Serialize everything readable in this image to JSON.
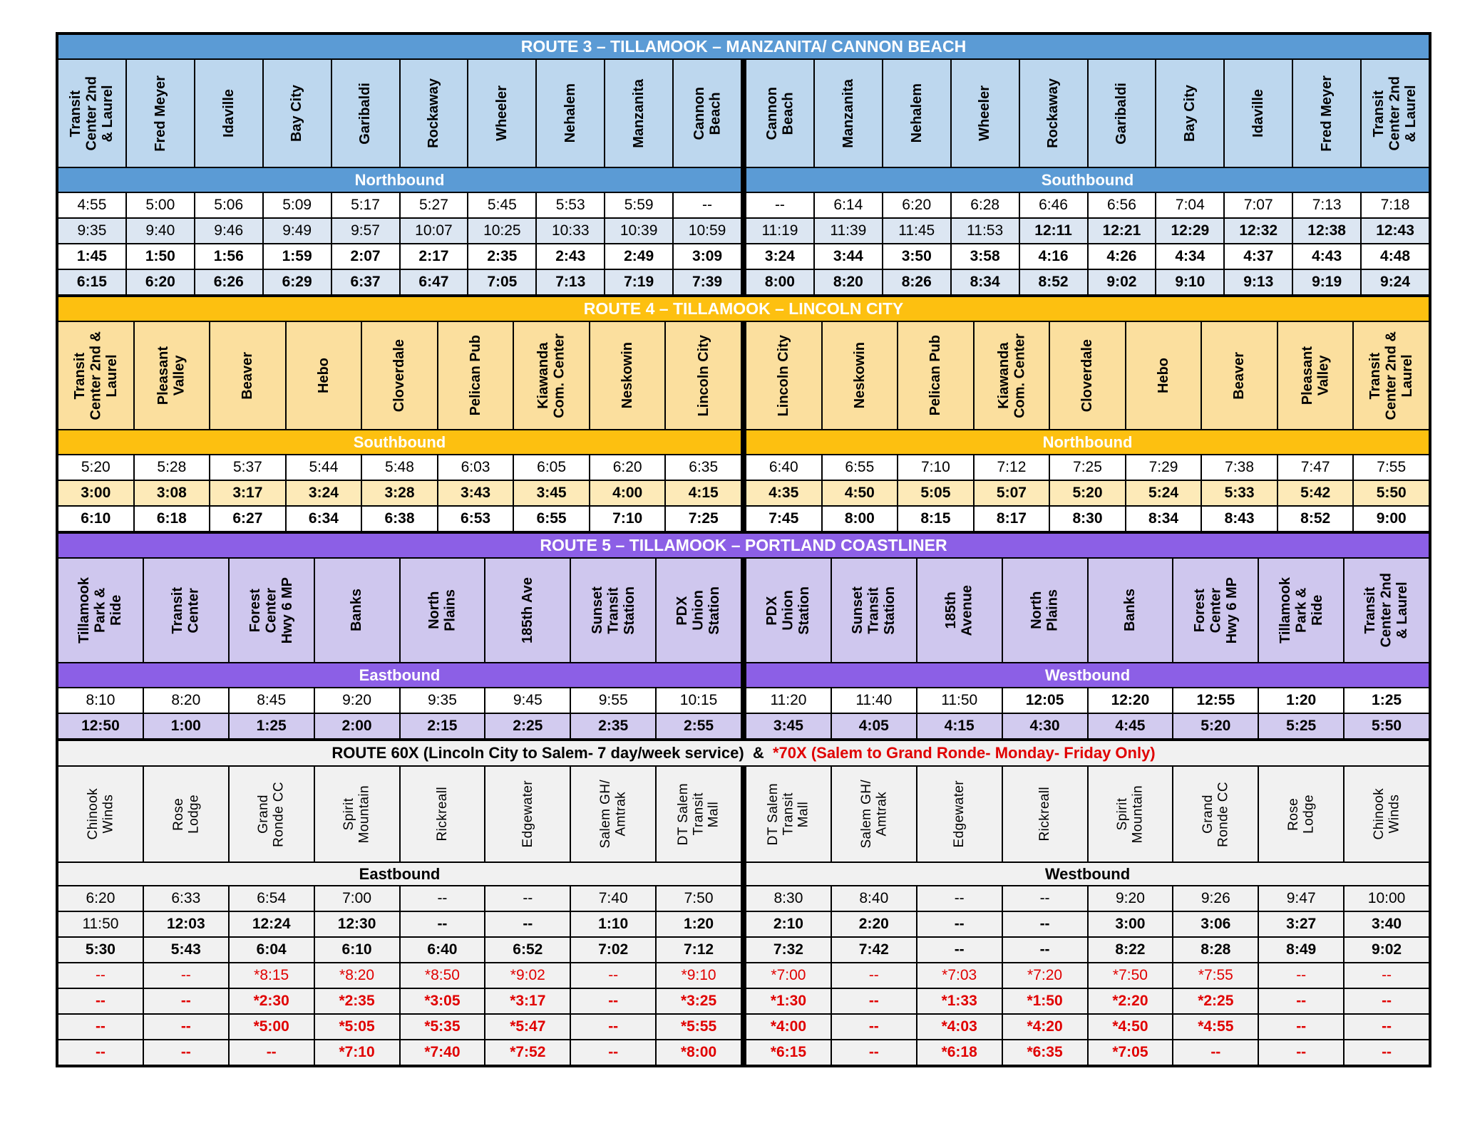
{
  "page": {
    "background": "#ffffff",
    "grid_color": "#000000"
  },
  "routes": [
    {
      "id": "route-3",
      "css": "route-r3",
      "title": "ROUTE 3 – TILLAMOOK – MANZANITA/ CANNON BEACH",
      "theme": {
        "title_bg": "#5b9bd5",
        "title_color": "#ffffff",
        "station_bg": "#bdd7ee",
        "dir_bg": "#5b9bd5",
        "dir_color": "#ffffff"
      },
      "directions": [
        "Northbound",
        "Southbound"
      ],
      "stations_left": [
        "Transit\nCenter 2nd\n& Laurel",
        "Fred Meyer",
        "Idaville",
        "Bay City",
        "Garibaldi",
        "Rockaway",
        "Wheeler",
        "Nehalem",
        "Manzanita",
        "Cannon\nBeach"
      ],
      "stations_right": [
        "Cannon\nBeach",
        "Manzanita",
        "Nehalem",
        "Wheeler",
        "Rockaway",
        "Garibaldi",
        "Bay City",
        "Idaville",
        "Fred Meyer",
        "Transit\nCenter 2nd\n& Laurel"
      ],
      "rows": [
        {
          "bg": "#ffffff",
          "bold": false,
          "cells": [
            "4:55",
            "5:00",
            "5:06",
            "5:09",
            "5:17",
            "5:27",
            "5:45",
            "5:53",
            "5:59",
            "--",
            "--",
            "6:14",
            "6:20",
            "6:28",
            "6:46",
            "6:56",
            "7:04",
            "7:07",
            "7:13",
            "7:18"
          ]
        },
        {
          "bg": "#dce6f2",
          "bold": [
            0,
            0,
            0,
            0,
            0,
            0,
            0,
            0,
            0,
            0,
            0,
            0,
            0,
            0,
            1,
            1,
            1,
            1,
            1,
            1
          ],
          "cells": [
            "9:35",
            "9:40",
            "9:46",
            "9:49",
            "9:57",
            "10:07",
            "10:25",
            "10:33",
            "10:39",
            "10:59",
            "11:19",
            "11:39",
            "11:45",
            "11:53",
            "12:11",
            "12:21",
            "12:29",
            "12:32",
            "12:38",
            "12:43"
          ]
        },
        {
          "bg": "#ffffff",
          "bold": true,
          "cells": [
            "1:45",
            "1:50",
            "1:56",
            "1:59",
            "2:07",
            "2:17",
            "2:35",
            "2:43",
            "2:49",
            "3:09",
            "3:24",
            "3:44",
            "3:50",
            "3:58",
            "4:16",
            "4:26",
            "4:34",
            "4:37",
            "4:43",
            "4:48"
          ]
        },
        {
          "bg": "#dce6f2",
          "bold": true,
          "cells": [
            "6:15",
            "6:20",
            "6:26",
            "6:29",
            "6:37",
            "6:47",
            "7:05",
            "7:13",
            "7:19",
            "7:39",
            "8:00",
            "8:20",
            "8:26",
            "8:34",
            "8:52",
            "9:02",
            "9:10",
            "9:13",
            "9:19",
            "9:24"
          ]
        }
      ]
    },
    {
      "id": "route-4",
      "css": "route-r4",
      "title": "ROUTE 4 – TILLAMOOK – LINCOLN CITY",
      "theme": {
        "title_bg": "#fdc010",
        "title_color": "#ffffff",
        "station_bg": "#fbdf9e",
        "dir_bg": "#fdc010",
        "dir_color": "#ffffff"
      },
      "directions": [
        "Southbound",
        "Northbound"
      ],
      "stations_left": [
        "Transit\nCenter 2nd &\nLaurel",
        "Pleasant\nValley",
        "Beaver",
        "Hebo",
        "Cloverdale",
        "Pelican Pub",
        "Kiawanda\nCom. Center",
        "Neskowin",
        "Lincoln City"
      ],
      "stations_right": [
        "Lincoln City",
        "Neskowin",
        "Pelican Pub",
        "Kiawanda\nCom. Center",
        "Cloverdale",
        "Hebo",
        "Beaver",
        "Pleasant\nValley",
        "Transit\nCenter 2nd &\nLaurel"
      ],
      "rows": [
        {
          "bg": "#ffffff",
          "bold": false,
          "cells": [
            "5:20",
            "5:28",
            "5:37",
            "5:44",
            "5:48",
            "6:03",
            "6:05",
            "6:20",
            "6:35",
            "6:40",
            "6:55",
            "7:10",
            "7:12",
            "7:25",
            "7:29",
            "7:38",
            "7:47",
            "7:55"
          ]
        },
        {
          "bg": "#fdeab8",
          "bold": true,
          "cells": [
            "3:00",
            "3:08",
            "3:17",
            "3:24",
            "3:28",
            "3:43",
            "3:45",
            "4:00",
            "4:15",
            "4:35",
            "4:50",
            "5:05",
            "5:07",
            "5:20",
            "5:24",
            "5:33",
            "5:42",
            "5:50"
          ]
        },
        {
          "bg": "#ffffff",
          "bold": true,
          "cells": [
            "6:10",
            "6:18",
            "6:27",
            "6:34",
            "6:38",
            "6:53",
            "6:55",
            "7:10",
            "7:25",
            "7:45",
            "8:00",
            "8:15",
            "8:17",
            "8:30",
            "8:34",
            "8:43",
            "8:52",
            "9:00"
          ]
        }
      ]
    },
    {
      "id": "route-5",
      "css": "route-r5",
      "title": "ROUTE 5 – TILLAMOOK – PORTLAND COASTLINER",
      "theme": {
        "title_bg": "#8c5fe6",
        "title_color": "#ffffff",
        "station_bg": "#cfc7ee",
        "dir_bg": "#8c5fe6",
        "dir_color": "#ffffff"
      },
      "directions": [
        "Eastbound",
        "Westbound"
      ],
      "stations_left": [
        "Tillamook\nPark &\nRide",
        "Transit\nCenter",
        "Forest\nCenter\nHwy 6 MP",
        "Banks",
        "North\nPlains",
        "185th Ave",
        "Sunset\nTransit\nStation",
        "PDX\nUnion\nStation"
      ],
      "stations_right": [
        "PDX\nUnion\nStation",
        "Sunset\nTransit\nStation",
        "185th\nAvenue",
        "North\nPlains",
        "Banks",
        "Forest\nCenter\nHwy 6 MP",
        "Tillamook\nPark &\nRide",
        "Transit\nCenter 2nd\n& Laurel"
      ],
      "rows": [
        {
          "bg": "#ffffff",
          "bold": [
            0,
            0,
            0,
            0,
            0,
            0,
            0,
            0,
            0,
            0,
            0,
            1,
            1,
            1,
            1,
            1
          ],
          "cells": [
            "8:10",
            "8:20",
            "8:45",
            "9:20",
            "9:35",
            "9:45",
            "9:55",
            "10:15",
            "11:20",
            "11:40",
            "11:50",
            "12:05",
            "12:20",
            "12:55",
            "1:20",
            "1:25"
          ]
        },
        {
          "bg": "#d2cbef",
          "bold": true,
          "cells": [
            "12:50",
            "1:00",
            "1:25",
            "2:00",
            "2:15",
            "2:25",
            "2:35",
            "2:55",
            "3:45",
            "4:05",
            "4:15",
            "4:30",
            "4:45",
            "5:20",
            "5:25",
            "5:50"
          ]
        }
      ]
    },
    {
      "id": "route-60x",
      "css": "route-60x",
      "title_parts": [
        {
          "text": "ROUTE 60X (Lincoln City to Salem- 7 day/week service)  &  ",
          "color": "#000000"
        },
        {
          "text": "*70X (Salem to Grand Ronde- Monday- Friday Only)",
          "color": "#e00000"
        }
      ],
      "theme": {
        "title_bg": "#f1f1f1",
        "title_color": "#000000",
        "station_bg": "#f1f1f1",
        "dir_bg": "#f1f1f1",
        "dir_color": "#000000"
      },
      "directions": [
        "Eastbound",
        "Westbound"
      ],
      "stations_left": [
        "Chinook\nWinds",
        "Rose\nLodge",
        "Grand\nRonde CC",
        "Spirit\nMountain",
        "Rickreall",
        "Edgewater",
        "Salem GH/\nAmtrak",
        "DT Salem\nTransit\nMall"
      ],
      "stations_right": [
        "DT Salem\nTransit\nMall",
        "Salem GH/\nAmtrak",
        "Edgewater",
        "Rickreall",
        "Spirit\nMountain",
        "Grand\nRonde CC",
        "Rose\nLodge",
        "Chinook\nWinds"
      ],
      "rows": [
        {
          "bg": "#f1f1f1",
          "bold": false,
          "cells": [
            "6:20",
            "6:33",
            "6:54",
            "7:00",
            "--",
            "--",
            "7:40",
            "7:50",
            "8:30",
            "8:40",
            "--",
            "--",
            "9:20",
            "9:26",
            "9:47",
            "10:00"
          ]
        },
        {
          "bg": "#f1f1f1",
          "bold": [
            0,
            1,
            1,
            1,
            1,
            1,
            1,
            1,
            1,
            1,
            1,
            1,
            1,
            1,
            1,
            1
          ],
          "cells": [
            "11:50",
            "12:03",
            "12:24",
            "12:30",
            "--",
            "--",
            "1:10",
            "1:20",
            "2:10",
            "2:20",
            "--",
            "--",
            "3:00",
            "3:06",
            "3:27",
            "3:40"
          ]
        },
        {
          "bg": "#f1f1f1",
          "bold": true,
          "cells": [
            "5:30",
            "5:43",
            "6:04",
            "6:10",
            "6:40",
            "6:52",
            "7:02",
            "7:12",
            "7:32",
            "7:42",
            "--",
            "--",
            "8:22",
            "8:28",
            "8:49",
            "9:02"
          ]
        },
        {
          "bg": "#f1f1f1",
          "bold": false,
          "color": "#e00000",
          "cells": [
            "--",
            "--",
            "*8:15",
            "*8:20",
            "*8:50",
            "*9:02",
            "--",
            "*9:10",
            "*7:00",
            "--",
            "*7:03",
            "*7:20",
            "*7:50",
            "*7:55",
            "--",
            "--"
          ]
        },
        {
          "bg": "#f1f1f1",
          "bold": true,
          "color": "#e00000",
          "cells": [
            "--",
            "--",
            "*2:30",
            "*2:35",
            "*3:05",
            "*3:17",
            "--",
            "*3:25",
            "*1:30",
            "--",
            "*1:33",
            "*1:50",
            "*2:20",
            "*2:25",
            "--",
            "--"
          ]
        },
        {
          "bg": "#f1f1f1",
          "bold": true,
          "color": "#e00000",
          "cells": [
            "--",
            "--",
            "*5:00",
            "*5:05",
            "*5:35",
            "*5:47",
            "--",
            "*5:55",
            "*4:00",
            "--",
            "*4:03",
            "*4:20",
            "*4:50",
            "*4:55",
            "--",
            "--"
          ]
        },
        {
          "bg": "#f1f1f1",
          "bold": true,
          "color": "#e00000",
          "cells": [
            "--",
            "--",
            "--",
            "*7:10",
            "*7:40",
            "*7:52",
            "--",
            "*8:00",
            "*6:15",
            "--",
            "*6:18",
            "*6:35",
            "*7:05",
            "--",
            "--",
            "--"
          ]
        }
      ]
    }
  ]
}
